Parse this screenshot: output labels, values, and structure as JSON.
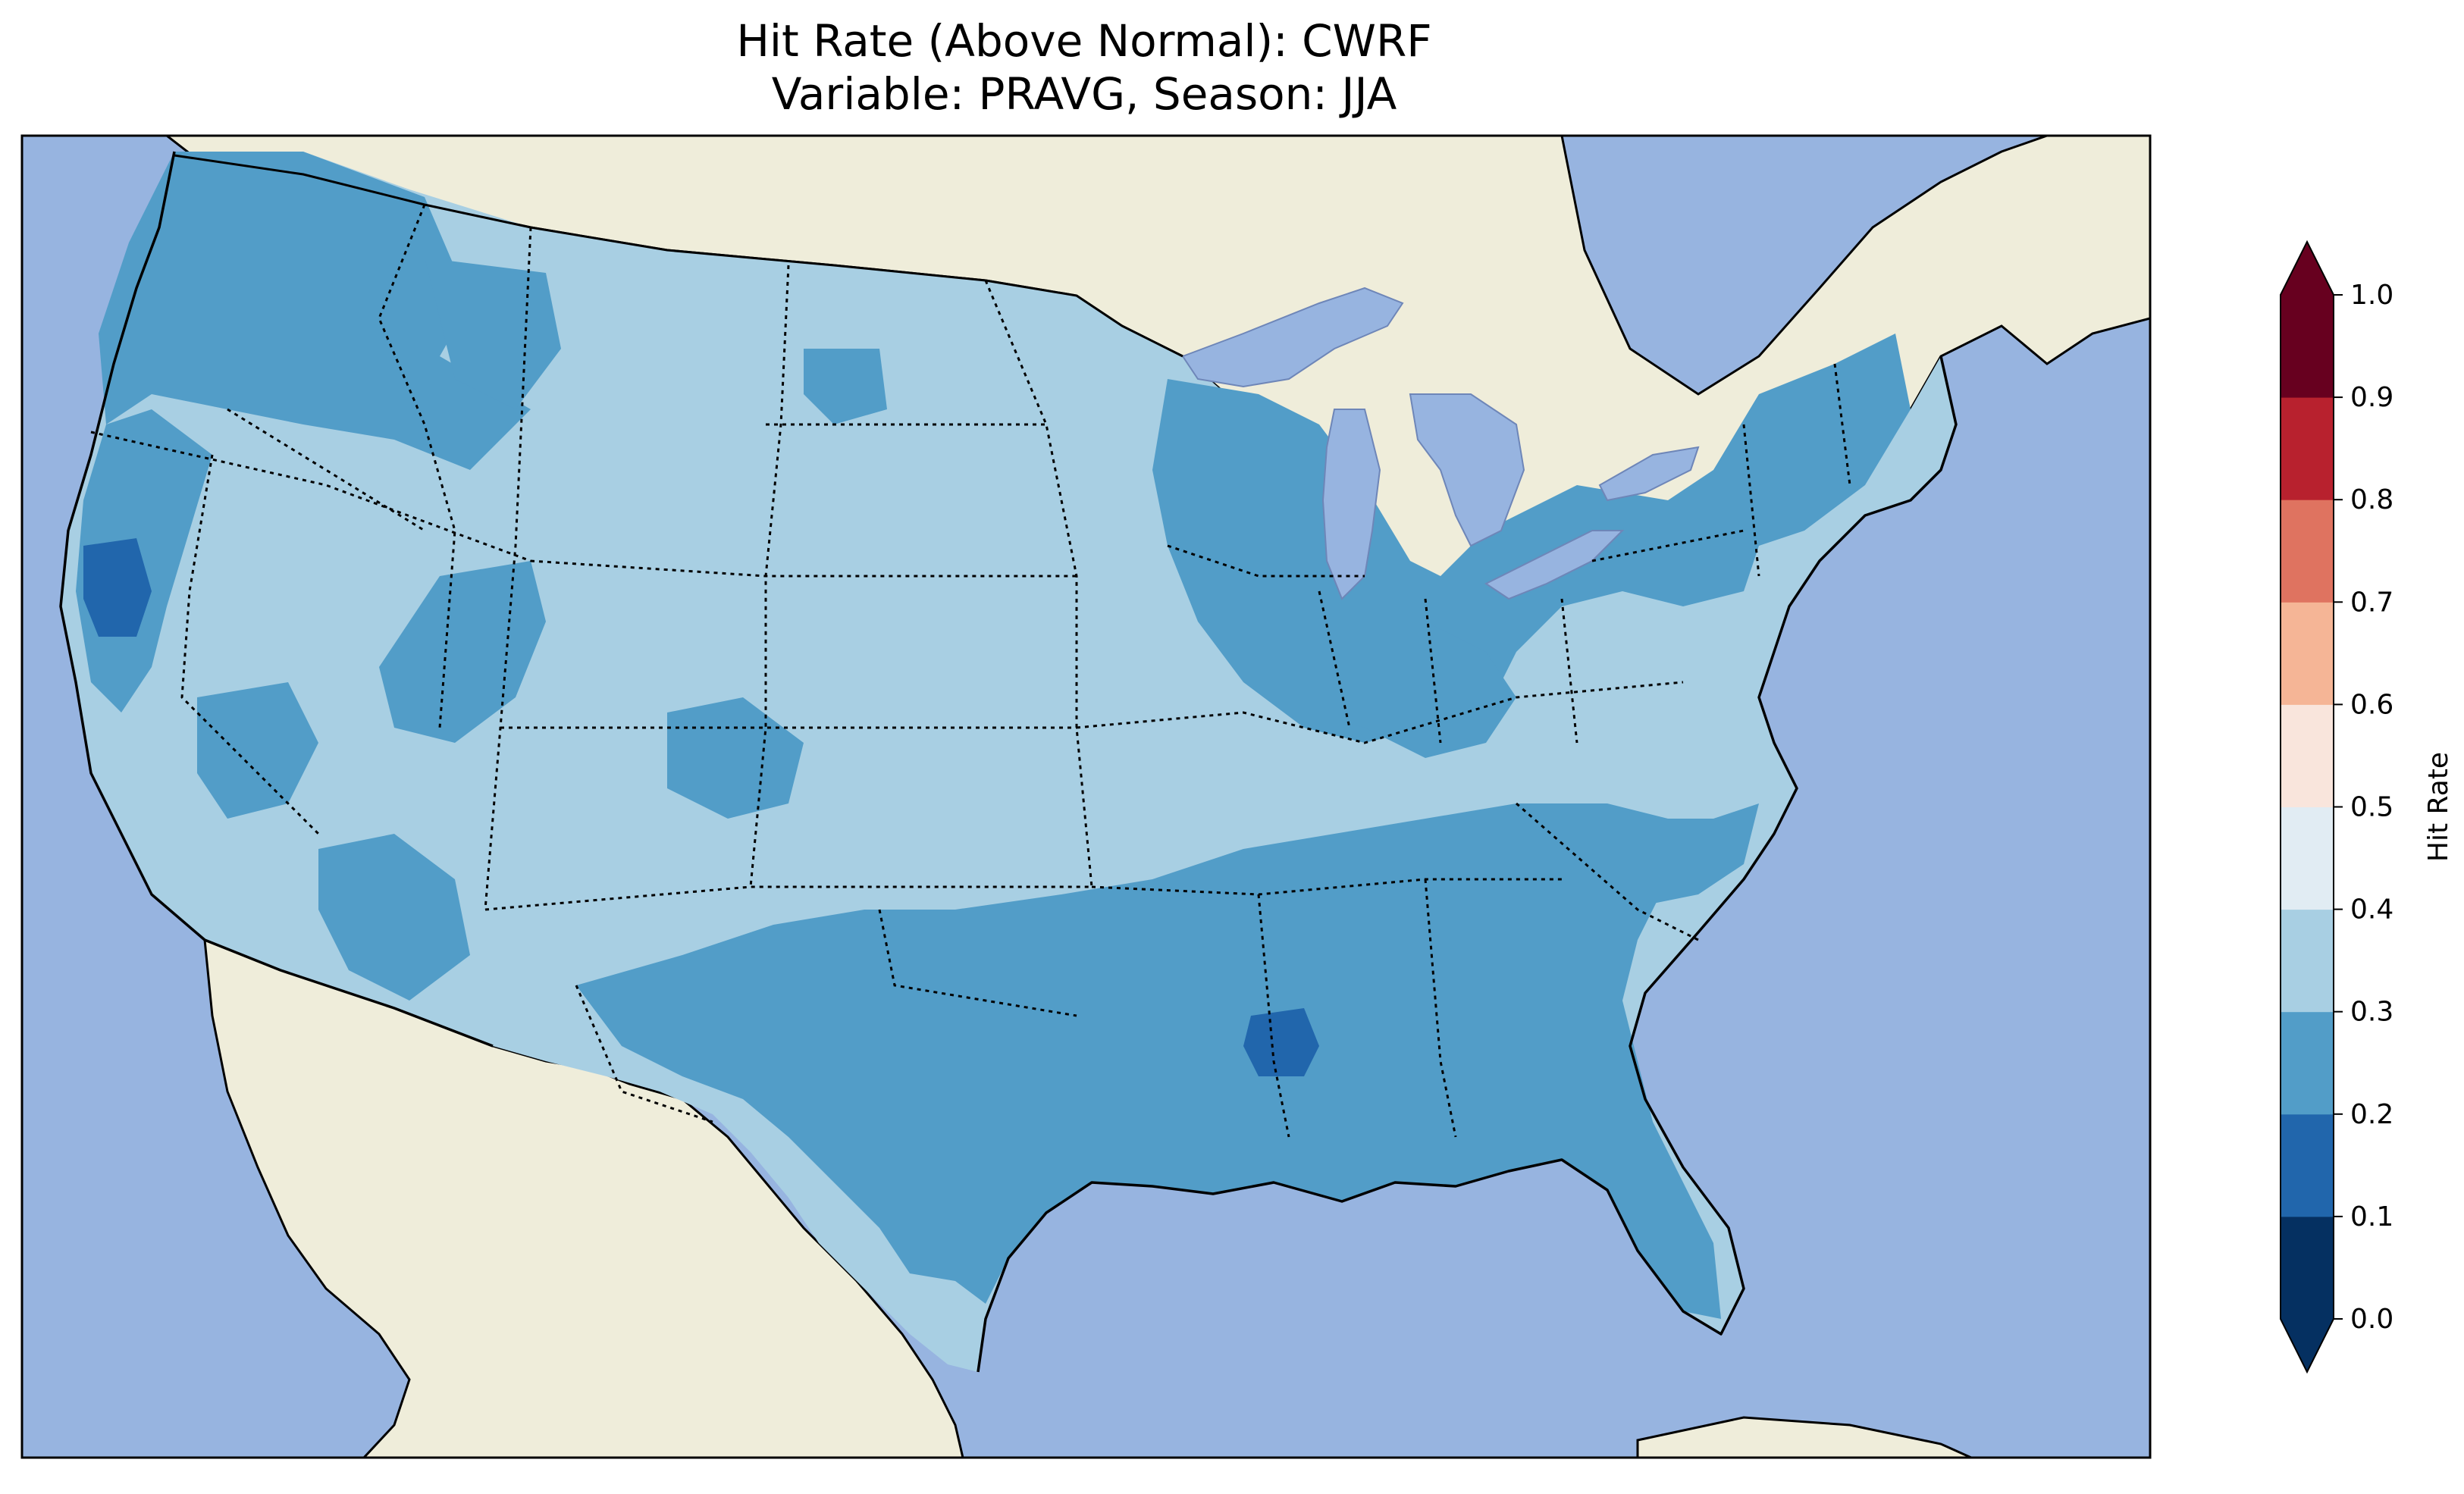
{
  "title": {
    "line1": "Hit Rate (Above Normal): CWRF",
    "line2": "Variable: PRAVG, Season: JJA"
  },
  "colorbar": {
    "label": "Hit Rate",
    "ticks": [
      "0.0",
      "0.1",
      "0.2",
      "0.3",
      "0.4",
      "0.5",
      "0.6",
      "0.7",
      "0.8",
      "0.9",
      "1.0"
    ],
    "bins": [
      {
        "range": [
          0.0,
          0.1
        ],
        "color": "#053061"
      },
      {
        "range": [
          0.1,
          0.2
        ],
        "color": "#2166ac"
      },
      {
        "range": [
          0.2,
          0.3
        ],
        "color": "#529dc8"
      },
      {
        "range": [
          0.3,
          0.4
        ],
        "color": "#a8cfe3"
      },
      {
        "range": [
          0.4,
          0.5
        ],
        "color": "#e1ecf3"
      },
      {
        "range": [
          0.5,
          0.6
        ],
        "color": "#f9e5dc"
      },
      {
        "range": [
          0.6,
          0.7
        ],
        "color": "#f5b596"
      },
      {
        "range": [
          0.7,
          0.8
        ],
        "color": "#df7360"
      },
      {
        "range": [
          0.8,
          0.9
        ],
        "color": "#b8212e"
      },
      {
        "range": [
          0.9,
          1.0
        ],
        "color": "#67001f"
      }
    ],
    "extend": "both",
    "under_color": "#053061",
    "over_color": "#67001f"
  },
  "map": {
    "ocean_color": "#97b4e0",
    "land_color": "#efedda",
    "lake_color": "#97b4e0",
    "projection": "lambert-conformal",
    "region": "CONUS"
  },
  "field_regions": [
    {
      "name": "Pacific Northwest / Oregon",
      "value_bin": "0.2-0.3"
    },
    {
      "name": "Central California",
      "value_bin": "0.1-0.2"
    },
    {
      "name": "Great Basin / Intermountain West",
      "value_bin": "0.3-0.4"
    },
    {
      "name": "Northern Plains",
      "value_bin": "0.3-0.4"
    },
    {
      "name": "Upper Midwest / Great Lakes",
      "value_bin": "0.2-0.3"
    },
    {
      "name": "Texas / Southern Plains",
      "value_bin": "0.2-0.3"
    },
    {
      "name": "Southeast",
      "value_bin": "0.2-0.3"
    },
    {
      "name": "Mississippi",
      "value_bin": "0.1-0.2"
    },
    {
      "name": "Northeast",
      "value_bin": "0.2-0.3"
    },
    {
      "name": "Mid-Atlantic / Ohio Valley",
      "value_bin": "0.3-0.4"
    }
  ]
}
